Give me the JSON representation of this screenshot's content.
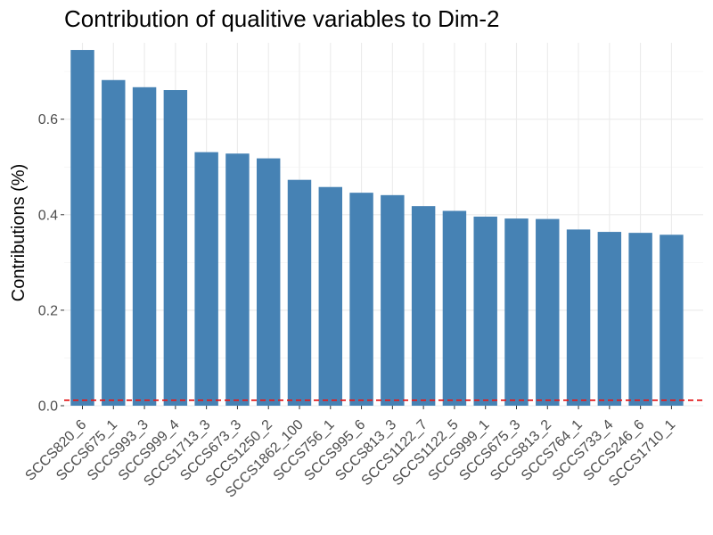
{
  "chart_data": {
    "type": "bar",
    "title": "Contribution of qualitive variables to Dim-2",
    "xlabel": "",
    "ylabel": "Contributions (%)",
    "categories": [
      "SCCS820_6",
      "SCCS675_1",
      "SCCS993_3",
      "SCCS999_4",
      "SCCS1713_3",
      "SCCS673_3",
      "SCCS1250_2",
      "SCCS1862_100",
      "SCCS756_1",
      "SCCS995_6",
      "SCCS813_3",
      "SCCS1122_7",
      "SCCS1122_5",
      "SCCS999_1",
      "SCCS675_3",
      "SCCS813_2",
      "SCCS764_1",
      "SCCS733_4",
      "SCCS246_6",
      "SCCS1710_1"
    ],
    "values": [
      0.745,
      0.682,
      0.667,
      0.661,
      0.531,
      0.528,
      0.518,
      0.473,
      0.458,
      0.446,
      0.441,
      0.418,
      0.408,
      0.396,
      0.392,
      0.391,
      0.369,
      0.364,
      0.362,
      0.358
    ],
    "ylim": [
      0,
      0.76
    ],
    "y_ticks": [
      0.0,
      0.2,
      0.4,
      0.6
    ],
    "y_tick_labels": [
      "0.0",
      "0.2",
      "0.4",
      "0.6"
    ],
    "reference_line": {
      "value": 0.0114,
      "style": "dashed",
      "color": "#e41a1c"
    },
    "bar_color": "#4682b4",
    "grid": true,
    "legend": "none"
  }
}
